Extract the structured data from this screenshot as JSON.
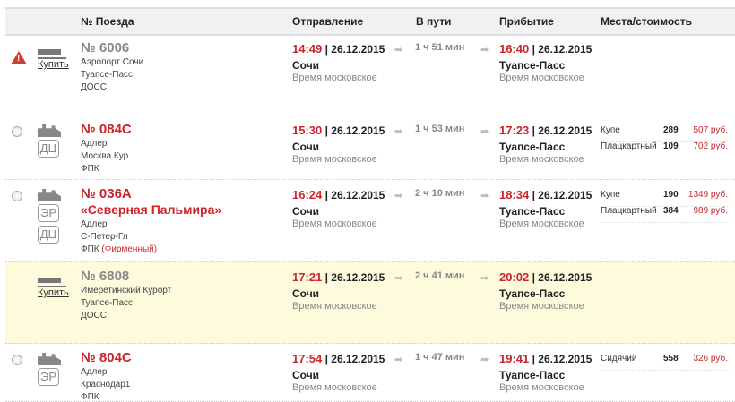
{
  "header": {
    "train": "№ Поезда",
    "departure": "Отправление",
    "duration": "В пути",
    "arrival": "Прибытие",
    "seats": "Места/стоимость"
  },
  "buy_label": "Купить",
  "time_zone": "Время московское",
  "colors": {
    "accent": "#c8262c",
    "highlight": "#fdfbdc"
  },
  "rows": [
    {
      "status": "warning-icon",
      "icon": "high-speed-train-icon",
      "number": "№ 6006",
      "from": "Аэропорт Сочи",
      "to": "Туапсе-Пасс",
      "carrier": "ДОСС",
      "dep_time": "14:49",
      "dep_date": "| 26.12.2015",
      "dep_station": "Сочи",
      "duration": "1 ч 51 мин",
      "arr_time": "16:40",
      "arr_date": "| 26.12.2015",
      "arr_station": "Туапсе-Пасс",
      "seats": []
    },
    {
      "status": "radio",
      "number": "№ 084С",
      "badges": [
        "ДЦ"
      ],
      "from": "Адлер",
      "to": "Москва Кур",
      "carrier": "ФПК",
      "dep_time": "15:30",
      "dep_date": "| 26.12.2015",
      "dep_station": "Сочи",
      "duration": "1 ч 53 мин",
      "arr_time": "17:23",
      "arr_date": "| 26.12.2015",
      "arr_station": "Туапсе-Пасс",
      "seats": [
        {
          "type": "Купе",
          "count": "289",
          "price": "507 руб."
        },
        {
          "type": "Плацкартный",
          "count": "109",
          "price": "702 руб."
        }
      ]
    },
    {
      "status": "radio",
      "number": "№ 036А",
      "name": "«Северная Пальмира»",
      "badges": [
        "ЭР",
        "ДЦ"
      ],
      "from": "Адлер",
      "to": "С-Петер-Гл",
      "carrier": "ФПК",
      "brand": "(Фирменный)",
      "dep_time": "16:24",
      "dep_date": "| 26.12.2015",
      "dep_station": "Сочи",
      "duration": "2 ч 10 мин",
      "arr_time": "18:34",
      "arr_date": "| 26.12.2015",
      "arr_station": "Туапсе-Пасс",
      "seats": [
        {
          "type": "Купе",
          "count": "190",
          "price": "1349 руб."
        },
        {
          "type": "Плацкартный",
          "count": "384",
          "price": "989 руб."
        }
      ]
    },
    {
      "status": "none",
      "icon": "high-speed-train-icon",
      "number": "№ 6808",
      "from": "Имеретинский Курорт",
      "to": "Туапсе-Пасс",
      "carrier": "ДОСС",
      "dep_time": "17:21",
      "dep_date": "| 26.12.2015",
      "dep_station": "Сочи",
      "duration": "2 ч 41 мин",
      "arr_time": "20:02",
      "arr_date": "| 26.12.2015",
      "arr_station": "Туапсе-Пасс",
      "seats": []
    },
    {
      "status": "radio",
      "number": "№ 804С",
      "badges": [
        "ЭР"
      ],
      "from": "Адлер",
      "to": "Краснодар1",
      "carrier": "ФПК",
      "dep_time": "17:54",
      "dep_date": "| 26.12.2015",
      "dep_station": "Сочи",
      "duration": "1 ч 47 мин",
      "arr_time": "19:41",
      "arr_date": "| 26.12.2015",
      "arr_station": "Туапсе-Пасс",
      "seats": [
        {
          "type": "Сидячий",
          "count": "558",
          "price": "326 руб."
        }
      ]
    }
  ]
}
